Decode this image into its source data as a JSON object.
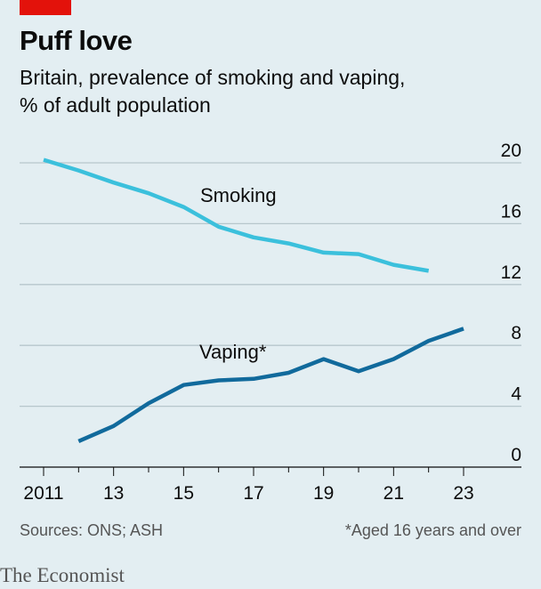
{
  "title": "Puff love",
  "subtitle_line1": "Britain, prevalence of smoking and vaping,",
  "subtitle_line2": "% of adult population",
  "source": "Sources: ONS; ASH",
  "footnote": "*Aged 16 years and over",
  "brand": "The Economist",
  "colors": {
    "smoking": "#3bc0dc",
    "vaping": "#116a9c",
    "brand_red": "#e3120b",
    "background": "#e3eef2"
  },
  "chart_data": {
    "type": "line",
    "title": "Puff love",
    "subtitle": "Britain, prevalence of smoking and vaping, % of adult population",
    "ylim": [
      0,
      20
    ],
    "yticks": [
      0,
      4,
      8,
      12,
      16,
      20
    ],
    "xlim": [
      2011,
      2023
    ],
    "xticks": [
      2011,
      2013,
      2015,
      2017,
      2019,
      2021,
      2023
    ],
    "xtick_labels": [
      "2011",
      "13",
      "15",
      "17",
      "19",
      "21",
      "23"
    ],
    "grid": true,
    "series": [
      {
        "name": "Smoking",
        "color": "#3bc0dc",
        "x": [
          2011,
          2012,
          2013,
          2014,
          2015,
          2016,
          2017,
          2018,
          2019,
          2020,
          2021,
          2022
        ],
        "y": [
          20.2,
          19.5,
          18.7,
          18.0,
          17.1,
          15.8,
          15.1,
          14.7,
          14.1,
          14.0,
          13.3,
          12.9
        ]
      },
      {
        "name": "Vaping*",
        "color": "#116a9c",
        "x": [
          2012,
          2013,
          2014,
          2015,
          2016,
          2017,
          2018,
          2019,
          2020,
          2021,
          2022,
          2023
        ],
        "y": [
          1.7,
          2.7,
          4.2,
          5.4,
          5.7,
          5.8,
          6.2,
          7.1,
          6.3,
          7.1,
          8.3,
          9.1
        ]
      }
    ]
  }
}
